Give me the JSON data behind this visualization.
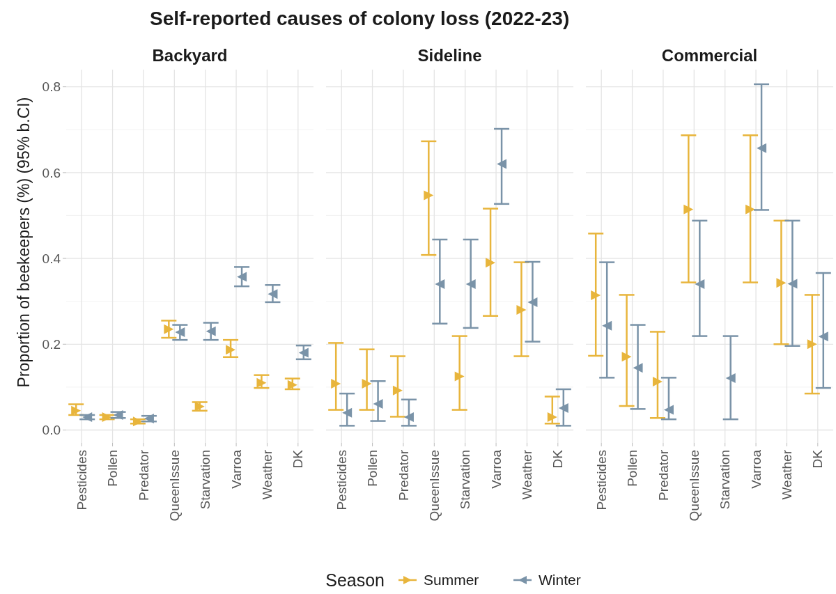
{
  "chart_data": [
    {
      "type": "scatter",
      "title": "Backyard",
      "legend": "bottom",
      "legend_title": "Season",
      "annotations": [
        "Self-reported causes of colony loss (2022-23)"
      ],
      "ylabel": "Proportion of beekeepers (%) (95% b.CI)",
      "categories": [
        "Pesticides",
        "Pollen",
        "Predator",
        "QueenIssue",
        "Starvation",
        "Varroa",
        "Weather",
        "DK"
      ],
      "ylim": [
        -0.03,
        0.84
      ],
      "yticks": [
        {
          "value": 0,
          "label": "0.0"
        },
        0.2,
        0.4,
        0.6,
        0.8
      ],
      "grid": true,
      "marker": "triangle",
      "series": [
        {
          "name": "Summer",
          "color": "#e8b53c",
          "values": [
            0.045,
            0.03,
            0.02,
            0.235,
            0.055,
            0.187,
            0.11,
            0.105
          ],
          "errors": [
            [
              0.035,
              0.06
            ],
            [
              0.025,
              0.035
            ],
            [
              0.015,
              0.025
            ],
            [
              0.215,
              0.255
            ],
            [
              0.045,
              0.065
            ],
            [
              0.17,
              0.21
            ],
            [
              0.098,
              0.128
            ],
            [
              0.095,
              0.12
            ]
          ]
        },
        {
          "name": "Winter",
          "color": "#7a93a8",
          "values": [
            0.03,
            0.035,
            0.027,
            0.228,
            0.23,
            0.357,
            0.317,
            0.18
          ],
          "errors": [
            [
              0.025,
              0.035
            ],
            [
              0.028,
              0.042
            ],
            [
              0.02,
              0.033
            ],
            [
              0.21,
              0.245
            ],
            [
              0.21,
              0.25
            ],
            [
              0.335,
              0.38
            ],
            [
              0.298,
              0.338
            ],
            [
              0.165,
              0.197
            ]
          ]
        }
      ]
    },
    {
      "type": "scatter",
      "title": "Sideline",
      "categories": [
        "Pesticides",
        "Pollen",
        "Predator",
        "QueenIssue",
        "Starvation",
        "Varroa",
        "Weather",
        "DK"
      ],
      "ylim": [
        -0.03,
        0.84
      ],
      "yticks": [
        0,
        0.2,
        0.4,
        0.6,
        0.8
      ],
      "grid": true,
      "marker": "triangle",
      "tick_labels": "x",
      "series": [
        {
          "color": "#e8b53c",
          "values": [
            0.108,
            0.108,
            0.092,
            0.547,
            0.125,
            0.39,
            0.28,
            0.03
          ],
          "errors": [
            [
              0.047,
              0.203
            ],
            [
              0.047,
              0.188
            ],
            [
              0.031,
              0.172
            ],
            [
              0.408,
              0.673
            ],
            [
              0.047,
              0.219
            ],
            [
              0.266,
              0.516
            ],
            [
              0.172,
              0.391
            ],
            [
              0.015,
              0.078
            ]
          ]
        },
        {
          "color": "#7a93a8",
          "values": [
            0.04,
            0.061,
            0.03,
            0.34,
            0.34,
            0.62,
            0.298,
            0.051
          ],
          "errors": [
            [
              0.01,
              0.085
            ],
            [
              0.021,
              0.114
            ],
            [
              0.01,
              0.071
            ],
            [
              0.248,
              0.444
            ],
            [
              0.238,
              0.444
            ],
            [
              0.527,
              0.702
            ],
            [
              0.206,
              0.392
            ],
            [
              0.01,
              0.095
            ]
          ]
        }
      ]
    },
    {
      "type": "scatter",
      "title": "Commercial",
      "categories": [
        "Pesticides",
        "Pollen",
        "Predator",
        "QueenIssue",
        "Starvation",
        "Varroa",
        "Weather",
        "DK"
      ],
      "ylim": [
        -0.03,
        0.84
      ],
      "yticks": [
        0,
        0.2,
        0.4,
        0.6,
        0.8
      ],
      "grid": true,
      "marker": "triangle",
      "tick_labels": "x",
      "series": [
        {
          "color": "#e8b53c",
          "values": [
            0.314,
            0.171,
            0.113,
            0.514,
            null,
            0.514,
            0.343,
            0.2
          ],
          "errors": [
            [
              0.173,
              0.458
            ],
            [
              0.056,
              0.315
            ],
            [
              0.028,
              0.229
            ],
            [
              0.344,
              0.687
            ],
            null,
            [
              0.344,
              0.687
            ],
            [
              0.2,
              0.488
            ],
            [
              0.085,
              0.315
            ]
          ]
        },
        {
          "color": "#7a93a8",
          "values": [
            0.243,
            0.145,
            0.047,
            0.34,
            0.121,
            0.657,
            0.341,
            0.218
          ],
          "errors": [
            [
              0.122,
              0.391
            ],
            [
              0.049,
              0.245
            ],
            [
              0.025,
              0.122
            ],
            [
              0.219,
              0.488
            ],
            [
              0.025,
              0.219
            ],
            [
              0.513,
              0.806
            ],
            [
              0.196,
              0.488
            ],
            [
              0.098,
              0.366
            ]
          ]
        }
      ]
    }
  ]
}
